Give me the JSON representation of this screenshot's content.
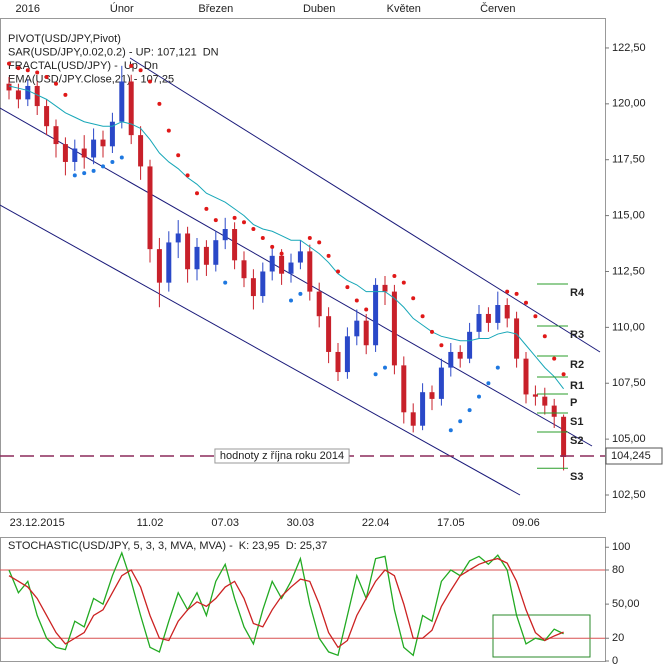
{
  "chart_data": [
    {
      "type": "candlestick",
      "legend": [
        [
          {
            "text": "PIVOT(USD/JPY,Pivot)",
            "color": "#000000"
          }
        ],
        [
          {
            "text": "SAR(USD/JPY,0.02,0.2) -  UP: 107,121",
            "color": "#d62020"
          },
          {
            "text": "DN",
            "color": "#1e6fd0"
          }
        ],
        [
          {
            "text": "FRACTAL(USD/JPY)  -",
            "color": "#1e6fd0"
          },
          {
            "text": "Up",
            "color": "#1e6fd0"
          },
          {
            "text": "Dn",
            "color": "#d62020"
          }
        ],
        [
          {
            "text": "EMA(USD/JPY.Close,21) - 107,25",
            "color": "#17a7b8"
          }
        ]
      ],
      "categories": [
        null,
        null,
        null,
        "23.12.2015",
        null,
        null,
        null,
        null,
        null,
        null,
        null,
        null,
        null,
        null,
        null,
        "11.02",
        null,
        null,
        null,
        null,
        null,
        null,
        null,
        "07.03",
        null,
        null,
        null,
        null,
        null,
        null,
        null,
        "30.03",
        null,
        null,
        null,
        null,
        null,
        null,
        null,
        "22.04",
        null,
        null,
        null,
        null,
        null,
        null,
        null,
        "17.05",
        null,
        null,
        null,
        null,
        null,
        null,
        null,
        "09.06",
        null,
        null,
        null,
        null
      ],
      "top_labels": [
        null,
        null,
        "2016",
        null,
        null,
        null,
        null,
        null,
        null,
        null,
        null,
        null,
        "Únor",
        null,
        null,
        null,
        null,
        null,
        null,
        null,
        null,
        null,
        "Březen",
        null,
        null,
        null,
        null,
        null,
        null,
        null,
        null,
        null,
        null,
        "Duben",
        null,
        null,
        null,
        null,
        null,
        null,
        null,
        null,
        "Květen",
        null,
        null,
        null,
        null,
        null,
        null,
        null,
        null,
        null,
        "Červen",
        null,
        null,
        null,
        null,
        null,
        null,
        null
      ],
      "open": [
        120.9,
        120.6,
        120.2,
        120.8,
        119.9,
        119.0,
        118.2,
        117.4,
        118.0,
        117.6,
        118.4,
        118.1,
        119.2,
        121.0,
        118.6,
        117.2,
        113.5,
        112.0,
        113.8,
        114.2,
        112.6,
        113.6,
        112.8,
        113.9,
        114.4,
        113.0,
        112.2,
        111.4,
        112.5,
        113.2,
        112.4,
        112.9,
        113.4,
        111.6,
        110.5,
        108.9,
        108.0,
        109.6,
        110.3,
        109.2,
        111.9,
        111.6,
        108.3,
        106.2,
        105.6,
        107.1,
        106.8,
        108.2,
        108.9,
        108.6,
        109.8,
        110.6,
        110.2,
        111.0,
        110.4,
        108.6,
        107.0,
        106.9,
        106.5,
        106.0
      ],
      "high": [
        121.2,
        120.9,
        121.1,
        121.0,
        120.2,
        119.3,
        118.5,
        118.4,
        118.6,
        118.9,
        118.8,
        119.6,
        121.7,
        121.3,
        119.0,
        117.5,
        114.0,
        114.3,
        114.8,
        114.5,
        114.0,
        113.9,
        114.3,
        114.9,
        114.7,
        113.4,
        112.6,
        112.9,
        113.6,
        113.5,
        113.3,
        113.9,
        113.7,
        112.0,
        110.9,
        109.3,
        110.0,
        110.8,
        110.6,
        112.2,
        112.3,
        111.9,
        108.7,
        106.6,
        107.5,
        107.4,
        108.6,
        109.3,
        109.2,
        110.2,
        111.0,
        110.9,
        111.6,
        111.3,
        110.7,
        108.9,
        107.4,
        107.3,
        106.8,
        106.1
      ],
      "low": [
        120.2,
        119.8,
        119.9,
        119.5,
        118.6,
        117.6,
        116.8,
        117.0,
        117.1,
        117.3,
        117.6,
        117.8,
        118.9,
        118.2,
        116.6,
        112.9,
        110.9,
        111.6,
        113.1,
        112.0,
        112.1,
        112.3,
        112.5,
        113.5,
        112.6,
        111.8,
        110.8,
        111.1,
        112.1,
        111.9,
        112.0,
        112.6,
        111.2,
        110.0,
        108.4,
        107.6,
        107.7,
        109.2,
        108.8,
        108.9,
        111.0,
        107.9,
        105.7,
        105.3,
        105.4,
        106.3,
        106.5,
        107.8,
        108.2,
        108.4,
        109.5,
        109.8,
        109.9,
        110.0,
        108.2,
        106.6,
        106.5,
        106.1,
        105.5,
        103.6
      ],
      "close": [
        120.6,
        120.2,
        120.8,
        119.9,
        119.0,
        118.2,
        117.4,
        118.0,
        117.6,
        118.4,
        118.1,
        119.2,
        121.0,
        118.6,
        117.2,
        113.5,
        112.0,
        113.8,
        114.2,
        112.6,
        113.6,
        112.8,
        113.9,
        114.4,
        113.0,
        112.2,
        111.4,
        112.5,
        113.2,
        112.4,
        112.9,
        113.4,
        111.6,
        110.5,
        108.9,
        108.0,
        109.6,
        110.3,
        109.2,
        111.9,
        111.6,
        108.3,
        106.2,
        105.6,
        107.1,
        106.8,
        108.2,
        108.9,
        108.6,
        109.8,
        110.6,
        110.2,
        111.0,
        110.4,
        108.6,
        107.0,
        106.9,
        106.5,
        106.0,
        104.2
      ],
      "up_color": "#2a48c8",
      "down_color": "#c8202a",
      "sar": {
        "above_color": "#e01818",
        "below_color": "#1e78e0",
        "values": [
          121.8,
          121.6,
          121.5,
          121.4,
          121.2,
          120.9,
          120.4,
          116.8,
          116.9,
          117.0,
          117.2,
          117.4,
          117.6,
          121.7,
          121.5,
          121.0,
          120.0,
          118.8,
          117.7,
          116.8,
          116.0,
          115.3,
          114.8,
          112.0,
          114.9,
          114.7,
          114.4,
          114.0,
          113.6,
          113.3,
          111.2,
          111.5,
          114.0,
          113.8,
          113.2,
          112.5,
          111.8,
          111.2,
          110.8,
          107.9,
          108.2,
          112.3,
          112.0,
          111.3,
          110.5,
          109.8,
          109.2,
          105.4,
          105.8,
          106.3,
          106.9,
          107.5,
          108.2,
          111.6,
          111.5,
          111.1,
          110.5,
          109.6,
          108.6,
          107.9
        ]
      },
      "ema": {
        "color": "#17a7b8",
        "values": [
          120.8,
          120.7,
          120.6,
          120.4,
          120.2,
          119.9,
          119.6,
          119.4,
          119.2,
          119.1,
          119.0,
          119.0,
          119.2,
          119.1,
          118.9,
          118.4,
          117.8,
          117.4,
          117.1,
          116.7,
          116.4,
          116.0,
          115.8,
          115.6,
          115.3,
          115.0,
          114.6,
          114.4,
          114.3,
          114.1,
          113.9,
          113.9,
          113.6,
          113.3,
          112.9,
          112.4,
          112.1,
          111.9,
          111.6,
          111.6,
          111.6,
          111.3,
          110.9,
          110.4,
          110.1,
          109.8,
          109.6,
          109.5,
          109.4,
          109.4,
          109.5,
          109.5,
          109.7,
          109.8,
          109.7,
          109.2,
          108.7,
          108.2,
          107.8,
          107.25
        ]
      },
      "pivots": {
        "color": "#2a9d2a",
        "levels": [
          {
            "label": "R4",
            "value": 111.94
          },
          {
            "label": "R3",
            "value": 110.06
          },
          {
            "label": "R2",
            "value": 108.72
          },
          {
            "label": "R1",
            "value": 107.78
          },
          {
            "label": "P",
            "value": 107.02
          },
          {
            "label": "S1",
            "value": 106.17
          },
          {
            "label": "S2",
            "value": 105.32
          },
          {
            "label": "S3",
            "value": 103.7
          }
        ]
      },
      "reference_line": {
        "value": 104.245,
        "label": "104,245",
        "annotation": "hodnoty z října roku 2014",
        "color": "#8b2a5a"
      },
      "ylim": [
        101.74,
        123.84
      ],
      "yticks": [
        {
          "value": 102.5,
          "label": "102,50"
        },
        {
          "value": 105,
          "label": "105,00"
        },
        {
          "value": 107.5,
          "label": "107,50"
        },
        {
          "value": 110,
          "label": "110,00"
        },
        {
          "value": 112.5,
          "label": "112,50"
        },
        {
          "value": 115,
          "label": "115,00"
        },
        {
          "value": 117.5,
          "label": "117,50"
        },
        {
          "value": 120,
          "label": "120,00"
        },
        {
          "value": 122.5,
          "label": "122,50"
        }
      ]
    },
    {
      "type": "line",
      "title": [
        {
          "text": "STOCHASTIC(USD/JPY, 5, 3, 3, MVA, MVA) -",
          "color": "#22aa22"
        },
        {
          "text": "K: 23,95",
          "color": "#22aa22"
        },
        {
          "text": "D: 25,37",
          "color": "#cc2222"
        }
      ],
      "series": [
        {
          "color": "#22aa22",
          "values": [
            80,
            60,
            70,
            40,
            20,
            12,
            10,
            35,
            30,
            55,
            50,
            75,
            95,
            70,
            40,
            12,
            8,
            35,
            60,
            45,
            60,
            40,
            70,
            85,
            55,
            30,
            15,
            45,
            70,
            55,
            70,
            90,
            50,
            20,
            8,
            5,
            40,
            75,
            55,
            90,
            92,
            45,
            12,
            5,
            40,
            35,
            70,
            80,
            75,
            88,
            92,
            85,
            93,
            80,
            40,
            15,
            20,
            18,
            28,
            23.95
          ]
        },
        {
          "color": "#cc2222",
          "values": [
            75,
            70,
            65,
            55,
            40,
            25,
            15,
            20,
            25,
            40,
            45,
            60,
            75,
            80,
            65,
            40,
            20,
            18,
            35,
            45,
            52,
            48,
            55,
            65,
            70,
            55,
            33,
            30,
            45,
            57,
            65,
            72,
            70,
            50,
            25,
            12,
            18,
            40,
            55,
            70,
            80,
            75,
            50,
            20,
            20,
            27,
            48,
            62,
            75,
            80,
            85,
            88,
            90,
            86,
            70,
            45,
            25,
            18,
            22,
            25.37
          ]
        }
      ],
      "levels": [
        80,
        20
      ],
      "level_color": "#d85050",
      "ylim": [
        0,
        109
      ],
      "yticks": [
        0,
        20,
        {
          "value": 50,
          "label": "50,00"
        },
        80,
        100
      ]
    }
  ]
}
